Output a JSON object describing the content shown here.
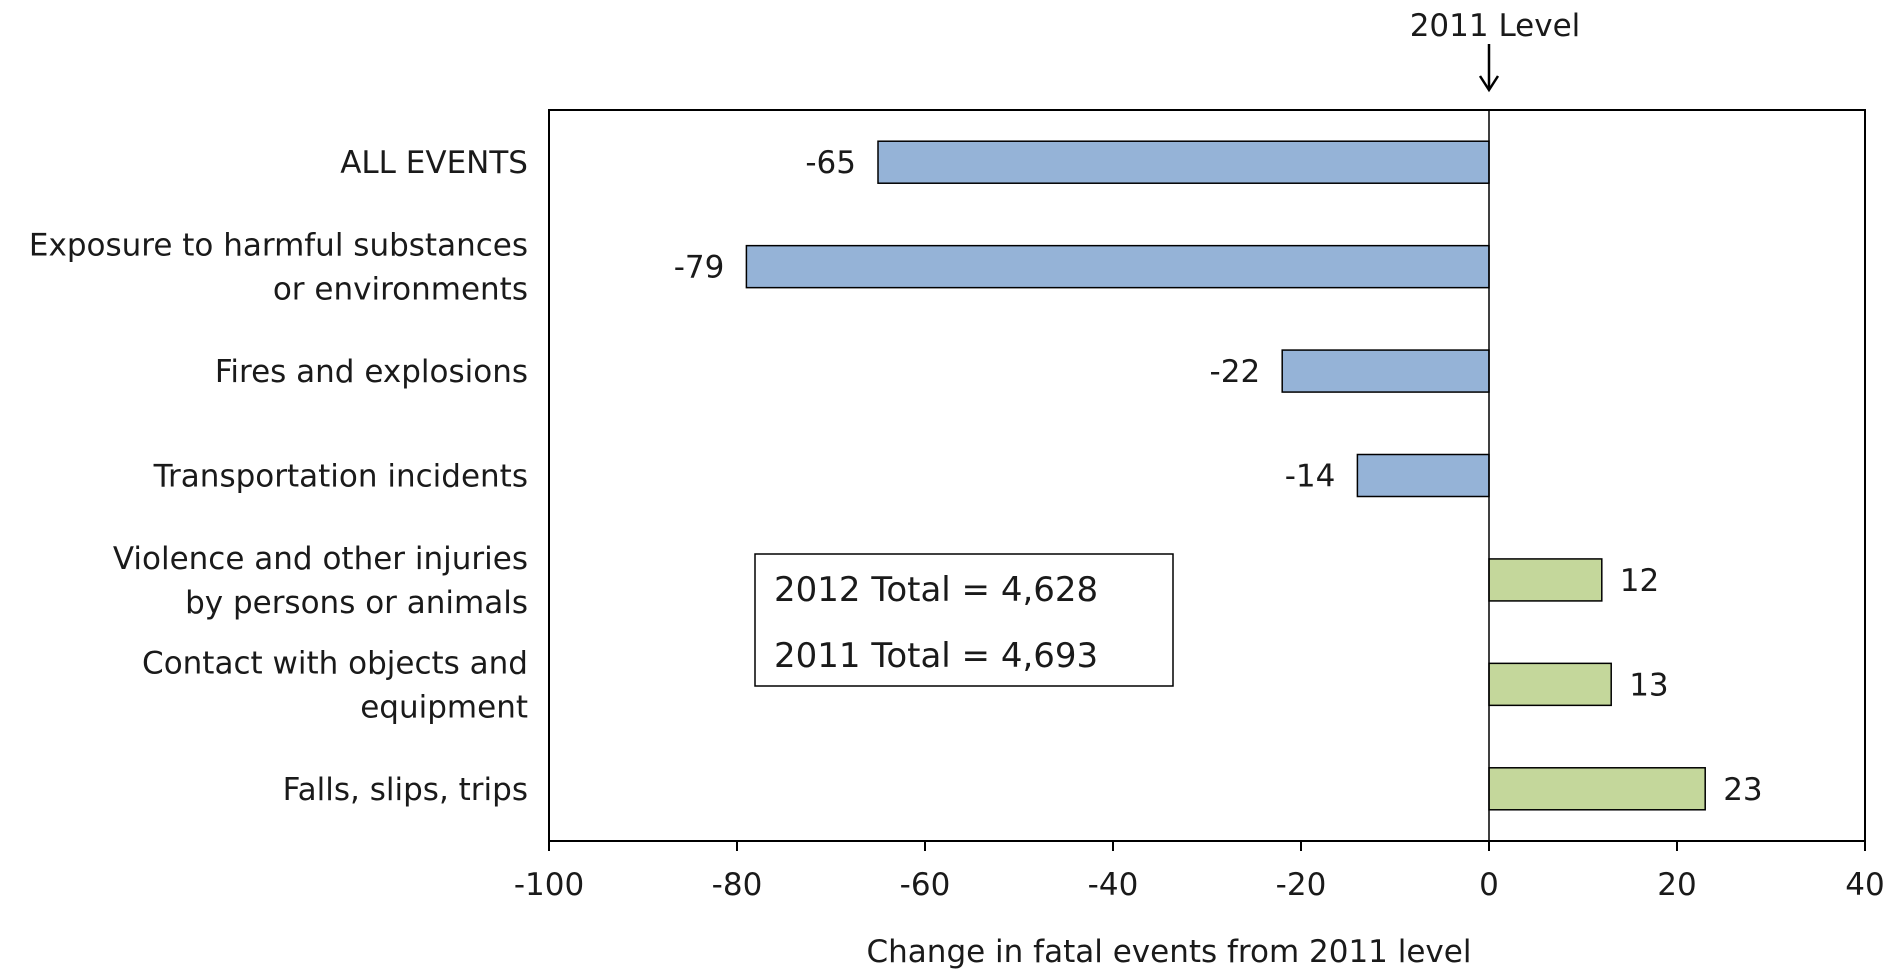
{
  "chart_data": {
    "type": "bar",
    "orientation": "horizontal",
    "categories": [
      [
        "ALL EVENTS"
      ],
      [
        "Exposure to harmful substances",
        "or environments"
      ],
      [
        "Fires and explosions"
      ],
      [
        "Transportation incidents"
      ],
      [
        "Violence and other injuries",
        "by persons or animals"
      ],
      [
        "Contact with objects and",
        "equipment"
      ],
      [
        "Falls, slips, trips"
      ]
    ],
    "values": [
      -65,
      -79,
      -22,
      -14,
      12,
      13,
      23
    ],
    "value_labels": [
      "-65",
      "-79",
      "-22",
      "-14",
      "12",
      "13",
      "23"
    ],
    "xlabel": "Change in fatal events from 2011 level",
    "xlim": [
      -100,
      40
    ],
    "xticks": [
      -100,
      -80,
      -60,
      -40,
      -20,
      0,
      20,
      40
    ],
    "xtick_labels": [
      "-100",
      "-80",
      "-60",
      "-40",
      "-20",
      "0",
      "20",
      "40"
    ],
    "negative_color": "#95b3d7",
    "positive_color": "#c4d79b",
    "reference_line": {
      "value": 0,
      "label": "2011 Level"
    },
    "annotation": [
      "2012 Total = 4,628",
      "2011 Total = 4,693"
    ],
    "grid": false,
    "legend": "none"
  }
}
